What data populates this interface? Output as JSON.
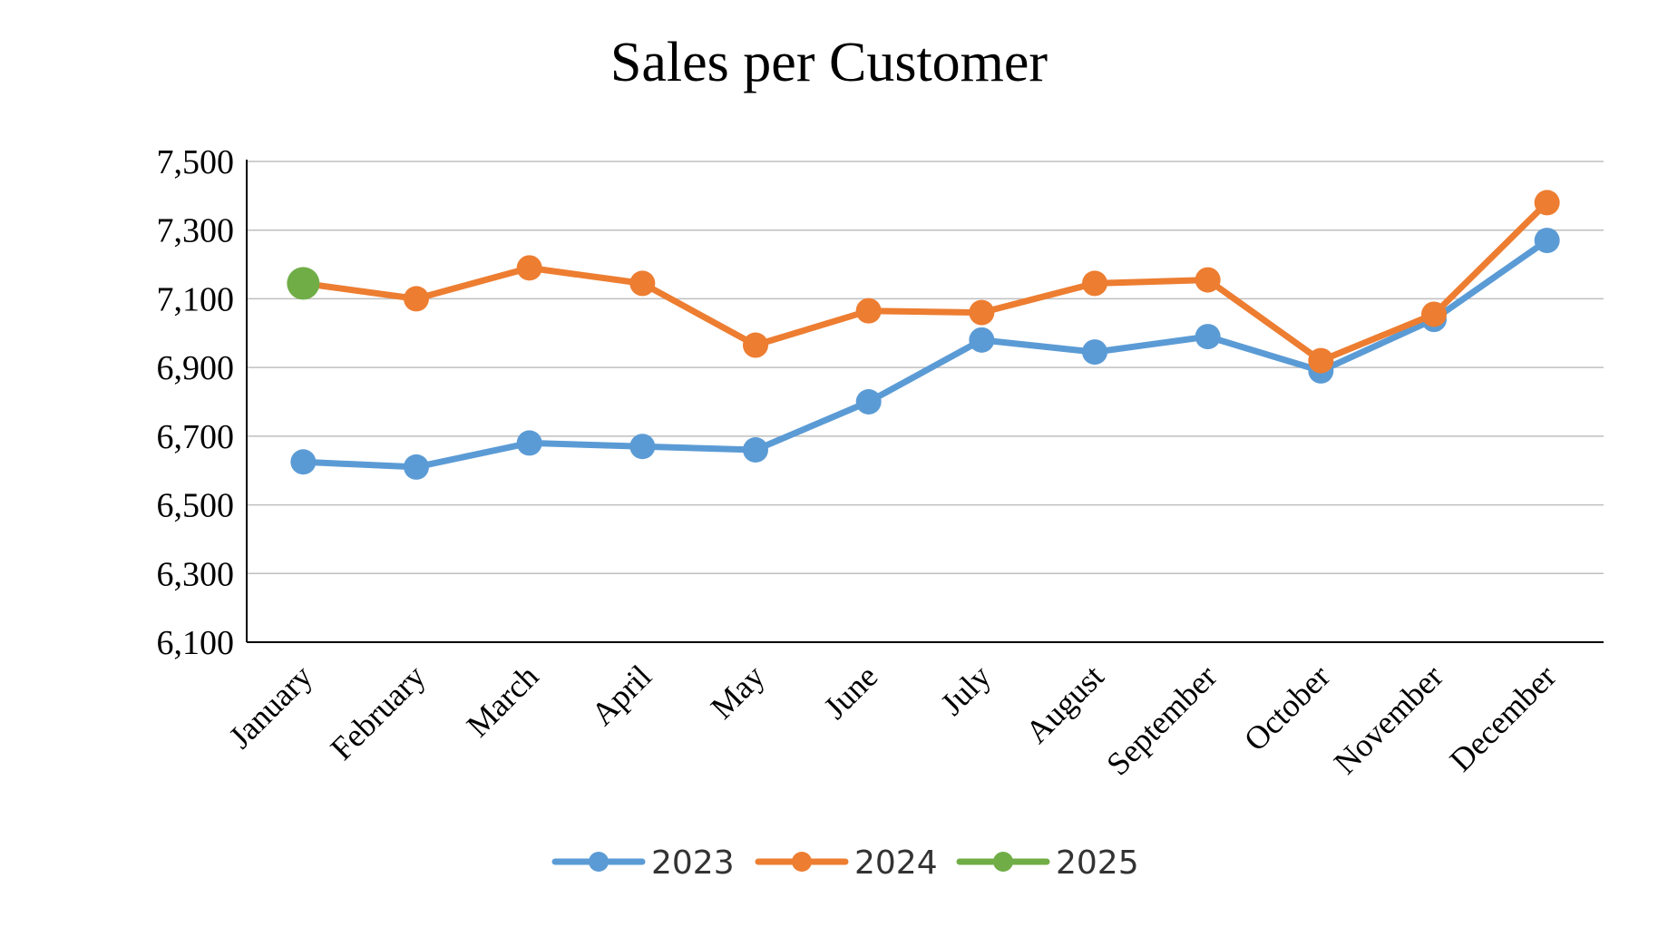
{
  "chart_data": {
    "type": "line",
    "title": "Sales per Customer",
    "xlabel": "",
    "ylabel": "",
    "categories": [
      "January",
      "February",
      "March",
      "April",
      "May",
      "June",
      "July",
      "August",
      "September",
      "October",
      "November",
      "December"
    ],
    "ylim": [
      6100,
      7500
    ],
    "yticks": [
      6100,
      6300,
      6500,
      6700,
      6900,
      7100,
      7300,
      7500
    ],
    "ytick_labels": [
      "6,100",
      "6,300",
      "6,500",
      "6,700",
      "6,900",
      "7,100",
      "7,300",
      "7,500"
    ],
    "grid": true,
    "legend": "bottom",
    "series": [
      {
        "name": "2023",
        "color": "#5B9BD5",
        "values": [
          6625,
          6610,
          6680,
          6670,
          6660,
          6800,
          6980,
          6945,
          6990,
          6890,
          7040,
          7270
        ]
      },
      {
        "name": "2024",
        "color": "#ED7D31",
        "values": [
          7145,
          7100,
          7190,
          7145,
          6965,
          7065,
          7060,
          7145,
          7155,
          6920,
          7055,
          7380
        ]
      },
      {
        "name": "2025",
        "color": "#70AD47",
        "values": [
          7145,
          null,
          null,
          null,
          null,
          null,
          null,
          null,
          null,
          null,
          null,
          null
        ]
      }
    ]
  }
}
